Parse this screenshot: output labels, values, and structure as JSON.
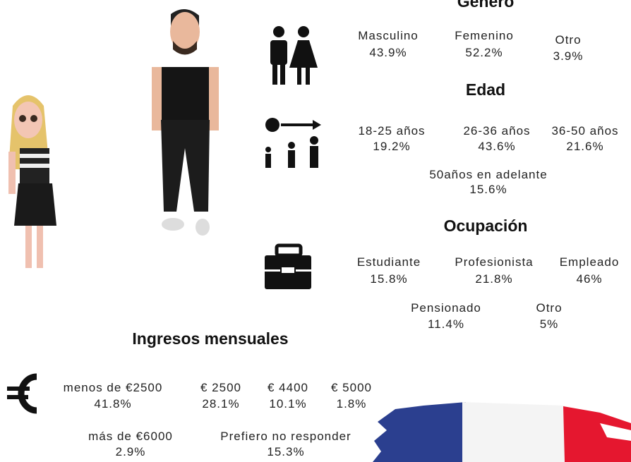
{
  "sections": [
    {
      "title": "Género",
      "items": [
        {
          "label": "Masculino",
          "value": "43.9%"
        },
        {
          "label": "Femenino",
          "value": "52.2%"
        },
        {
          "label": "Otro",
          "value": "3.9%"
        }
      ]
    },
    {
      "title": "Edad",
      "items": [
        {
          "label": "18-25 años",
          "value": "19.2%"
        },
        {
          "label": "26-36 años",
          "value": "43.6%"
        },
        {
          "label": "36-50 años",
          "value": "21.6%"
        },
        {
          "label": "50años en adelante",
          "value": "15.6%"
        }
      ]
    },
    {
      "title": "Ocupación",
      "items": [
        {
          "label": "Estudiante",
          "value": "15.8%"
        },
        {
          "label": "Profesionista",
          "value": "21.8%"
        },
        {
          "label": "Empleado",
          "value": "46%"
        },
        {
          "label": "Pensionado",
          "value": "11.4%"
        },
        {
          "label": "Otro",
          "value": "5%"
        }
      ]
    },
    {
      "title": "Ingresos mensuales",
      "items": [
        {
          "label": "menos de €2500",
          "value": "41.8%"
        },
        {
          "label": "€ 2500",
          "value": "28.1%"
        },
        {
          "label": "€ 4400",
          "value": "10.1%"
        },
        {
          "label": "€ 5000",
          "value": "1.8%"
        },
        {
          "label": "más de €6000",
          "value": "2.9%"
        },
        {
          "label": "Prefiero no responder",
          "value": "15.3%"
        }
      ]
    }
  ]
}
